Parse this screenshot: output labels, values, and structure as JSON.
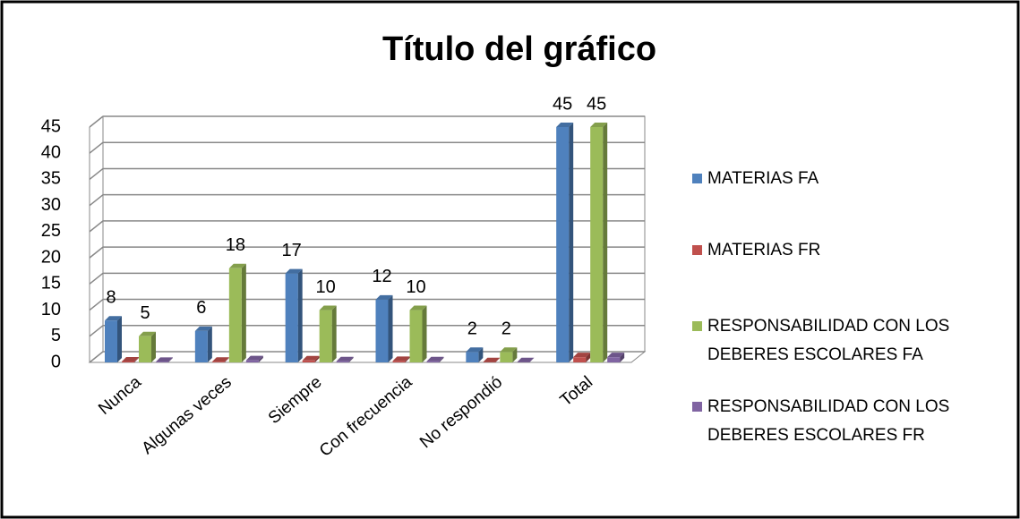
{
  "chart_data": {
    "type": "bar3d",
    "title": "Título del gráfico",
    "categories": [
      "Nunca",
      "Algunas veces",
      "Siempre",
      "Con frecuencia",
      "No respondió",
      "Total"
    ],
    "series": [
      {
        "name": "MATERIAS FA",
        "color": "#4f81bd",
        "values": [
          8,
          6,
          17,
          12,
          2,
          45
        ],
        "labels": true
      },
      {
        "name": "MATERIAS FR",
        "color": "#c0504d",
        "values": [
          0.18,
          0.13,
          0.38,
          0.27,
          0.04,
          1
        ],
        "labels": false
      },
      {
        "name": "RESPONSABILIDAD CON LOS DEBERES ESCOLARES FA",
        "color": "#9bbb59",
        "values": [
          5,
          18,
          10,
          10,
          2,
          45
        ],
        "labels": true
      },
      {
        "name": "RESPONSABILIDAD CON LOS DEBERES ESCOLARES FR",
        "color": "#8064a2",
        "values": [
          0.11,
          0.4,
          0.22,
          0.22,
          0.04,
          1
        ],
        "labels": false
      }
    ],
    "ylim": [
      0,
      45
    ],
    "yticks": [
      0,
      5,
      10,
      15,
      20,
      25,
      30,
      35,
      40,
      45
    ],
    "grid": true,
    "legend": "right"
  }
}
